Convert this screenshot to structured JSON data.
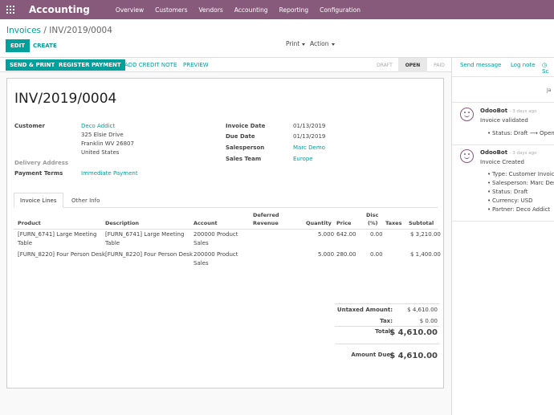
{
  "navbar": {
    "app_title": "Accounting",
    "menu": [
      "Overview",
      "Customers",
      "Vendors",
      "Accounting",
      "Reporting",
      "Configuration"
    ]
  },
  "control": {
    "breadcrumb_parent": "Invoices",
    "breadcrumb_sep": "/",
    "breadcrumb_current": "INV/2019/0004",
    "edit_label": "EDIT",
    "create_label": "CREATE",
    "print_label": "Print",
    "action_label": "Action"
  },
  "statusbar": {
    "send_print": "SEND & PRINT",
    "register_payment": "REGISTER PAYMENT",
    "add_credit_note": "ADD CREDIT NOTE",
    "preview": "PREVIEW",
    "stages": [
      "DRAFT",
      "OPEN",
      "PAID"
    ],
    "active_stage": "OPEN"
  },
  "invoice": {
    "number": "INV/2019/0004",
    "customer_label": "Customer",
    "customer_name": "Deco Addict",
    "address_line1": "325 Elsie Drive",
    "address_line2": "Franklin WV 26807",
    "address_line3": "United States",
    "delivery_label": "Delivery Address",
    "payment_terms_label": "Payment Terms",
    "payment_terms": "Immediate Payment",
    "invoice_date_label": "Invoice Date",
    "invoice_date": "01/13/2019",
    "due_date_label": "Due Date",
    "due_date": "01/13/2019",
    "salesperson_label": "Salesperson",
    "salesperson": "Marc Demo",
    "sales_team_label": "Sales Team",
    "sales_team": "Europe"
  },
  "tabs": [
    "Invoice Lines",
    "Other Info"
  ],
  "lines": {
    "headers": {
      "product": "Product",
      "description": "Description",
      "account": "Account",
      "deferred1": "Deferred",
      "deferred2": "Revenue",
      "quantity": "Quantity",
      "price": "Price",
      "disc1": "Disc",
      "disc2": "(%)",
      "taxes": "Taxes",
      "subtotal": "Subtotal"
    },
    "rows": [
      {
        "product1": "[FURN_6741] Large Meeting",
        "product2": "Table",
        "description1": "[FURN_6741] Large Meeting",
        "description2": "Table",
        "account1": "200000 Product",
        "account2": "Sales",
        "quantity": "5.000",
        "price": "642.00",
        "disc": "0.00",
        "subtotal": "$ 3,210.00"
      },
      {
        "product1": "[FURN_8220] Four Person Desk",
        "description1": "[FURN_8220] Four Person Desk",
        "account1": "200000 Product",
        "account2": "Sales",
        "quantity": "5.000",
        "price": "280.00",
        "disc": "0.00",
        "subtotal": "$ 1,400.00"
      }
    ]
  },
  "totals": {
    "untaxed_label": "Untaxed Amount:",
    "untaxed": "$ 4,610.00",
    "tax_label": "Tax:",
    "tax": "$ 0.00",
    "total_label": "Total:",
    "total": "$ 4,610.00",
    "due_label": "Amount Due:",
    "due": "$ 4,610.00"
  },
  "chatter": {
    "send_message": "Send message",
    "log_note": "Log note",
    "schedule": "Sc",
    "date_sep": "Ja",
    "messages": [
      {
        "author": "OdooBot",
        "ago": "- 3 days ago",
        "body": "Invoice validated",
        "tracking": [
          "Status: Draft ⟶ Open"
        ]
      },
      {
        "author": "OdooBot",
        "ago": "- 3 days ago",
        "body": "Invoice Created",
        "tracking": [
          "Type: Customer Invoice",
          "Salesperson: Marc Demo",
          "Status: Draft",
          "Currency: USD",
          "Partner: Deco Addict"
        ]
      }
    ]
  }
}
